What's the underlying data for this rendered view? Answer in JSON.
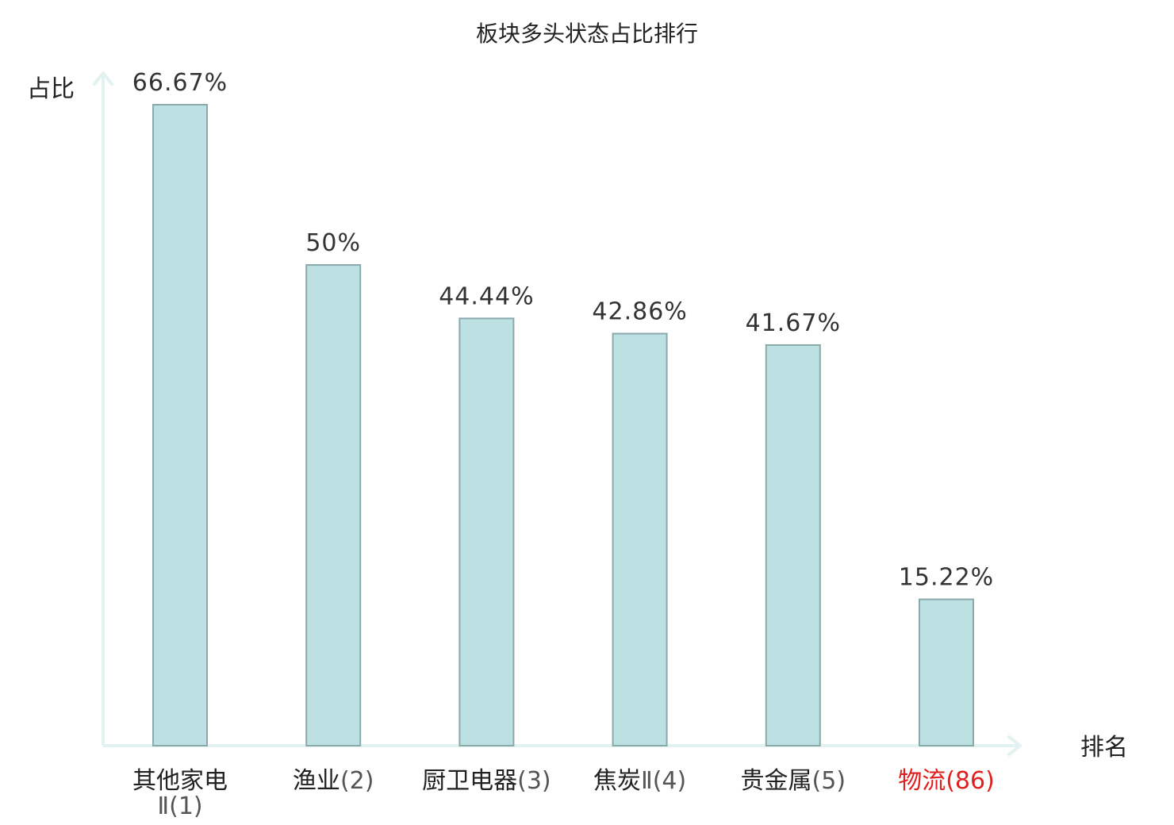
{
  "chart_data": {
    "type": "bar",
    "title": "板块多头状态占比排行",
    "ylabel": "占比",
    "xlabel": "排名",
    "ylim": [
      0,
      70
    ],
    "grid": false,
    "categories": [
      {
        "name": "其他家电",
        "name2": "Ⅱ",
        "rank": "(1)",
        "wrap": true,
        "highlight": false
      },
      {
        "name": "渔业",
        "rank": "(2)",
        "highlight": false
      },
      {
        "name": "厨卫电器",
        "rank": "(3)",
        "highlight": false
      },
      {
        "name": "焦炭",
        "name2": "Ⅱ",
        "rank": "(4)",
        "highlight": false
      },
      {
        "name": "贵金属",
        "rank": "(5)",
        "highlight": false
      },
      {
        "name": "物流",
        "rank": "(86)",
        "highlight": true
      }
    ],
    "values": [
      66.67,
      50,
      44.44,
      42.86,
      41.67,
      15.22
    ],
    "value_labels": [
      "66.67%",
      "50%",
      "44.44%",
      "42.86%",
      "41.67%",
      "15.22%"
    ],
    "colors": {
      "bar_fill": "#bde1e3",
      "bar_stroke": "#8aa9ab",
      "axis": "#e2f2f0",
      "highlight_text": "#e02020",
      "normal_text": "#222222",
      "rank_text": "#555555"
    }
  }
}
